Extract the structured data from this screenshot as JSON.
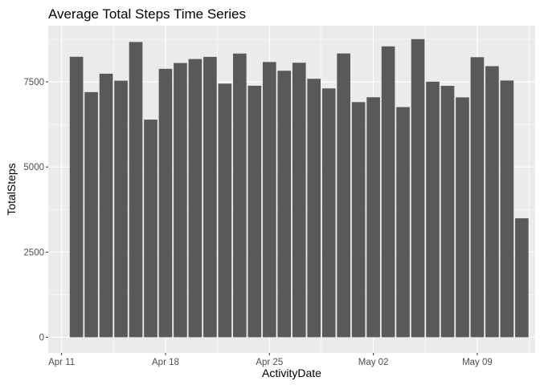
{
  "chart_data": {
    "type": "bar",
    "title": "Average Total Steps Time Series",
    "xlabel": "ActivityDate",
    "ylabel": "TotalSteps",
    "start_date": "2016-04-12",
    "values": [
      8237,
      7199,
      7739,
      7534,
      8670,
      6391,
      7882,
      8054,
      8170,
      8233,
      7448,
      8331,
      7386,
      8082,
      7826,
      8061,
      7590,
      7307,
      8334,
      6905,
      7048,
      8542,
      6759,
      8754,
      7505,
      7383,
      7044,
      8224,
      7960,
      7539,
      3493
    ],
    "ylim": [
      -460,
      9150
    ],
    "y_ticks": [
      {
        "v": 0,
        "label": "0"
      },
      {
        "v": 2500,
        "label": "2500"
      },
      {
        "v": 5000,
        "label": "5000"
      },
      {
        "v": 7500,
        "label": "7500"
      }
    ],
    "x_ticks": [
      {
        "d": -1,
        "label": "Apr 11"
      },
      {
        "d": 6,
        "label": "Apr 18"
      },
      {
        "d": 13,
        "label": "Apr 25"
      },
      {
        "d": 20,
        "label": "May 02"
      },
      {
        "d": 27,
        "label": "May 09"
      }
    ],
    "grid": true,
    "colors": {
      "bar": "#595959",
      "panel": "#ebebeb",
      "grid_major": "#ffffff"
    }
  }
}
